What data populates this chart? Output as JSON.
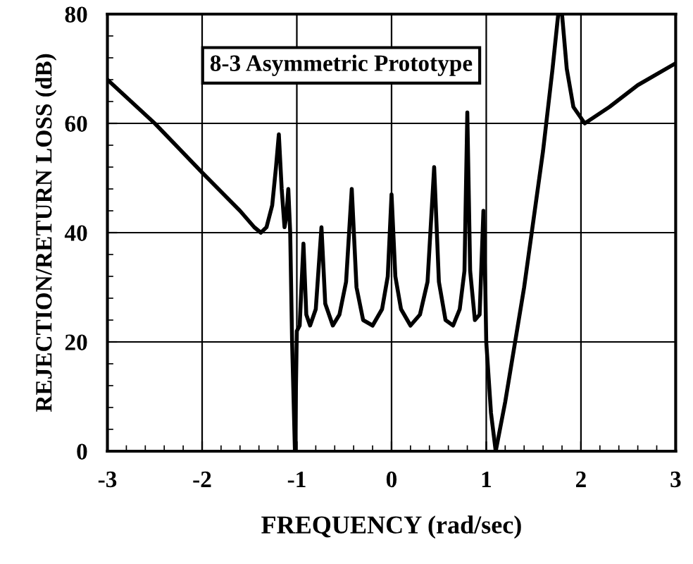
{
  "chart_data": {
    "type": "line",
    "xlabel": "FREQUENCY (rad/sec)",
    "ylabel": "REJECTION/RETURN LOSS (dB)",
    "annotations": [
      "8-3 Asymmetric Prototype"
    ],
    "series": [
      {
        "color": "#000000",
        "x": [
          -3,
          -2.5,
          -2,
          -1.6,
          -1.45,
          -1.38,
          -1.32,
          -1.26,
          -1.22,
          -1.19,
          -1.16,
          -1.13,
          -1.11,
          -1.09,
          -1.07,
          -1.05,
          -1.02
        ],
        "values": [
          68,
          60,
          51,
          44,
          41,
          40,
          41,
          45,
          52,
          58,
          48,
          41,
          43,
          48,
          40,
          20,
          0
        ]
      },
      {
        "color": "#000000",
        "x": [
          -1.02,
          -1.0,
          -0.97,
          -0.93,
          -0.9,
          -0.86,
          -0.8,
          -0.74,
          -0.7,
          -0.62,
          -0.55,
          -0.48,
          -0.42,
          -0.37,
          -0.3,
          -0.2,
          -0.1,
          -0.04,
          0.0,
          0.04,
          0.1,
          0.2,
          0.3,
          0.38,
          0.45,
          0.5,
          0.57,
          0.65,
          0.72,
          0.77,
          0.8,
          0.83,
          0.88,
          0.93,
          0.97,
          0.99,
          1.0,
          1.05,
          1.1
        ],
        "values": [
          0,
          22,
          23,
          38,
          25,
          23,
          26,
          41,
          27,
          23,
          25,
          31,
          48,
          30,
          24,
          23,
          26,
          32,
          47,
          32,
          26,
          23,
          25,
          31,
          52,
          31,
          24,
          23,
          26,
          33,
          62,
          33,
          24,
          25,
          44,
          30,
          20,
          7,
          0
        ]
      },
      {
        "color": "#000000",
        "x": [
          1.1,
          1.2,
          1.4,
          1.6,
          1.7,
          1.76,
          1.8,
          1.85,
          1.92,
          2.04,
          2.3,
          2.6,
          3
        ],
        "values": [
          0,
          9,
          30,
          55,
          70,
          80,
          80,
          70,
          63,
          60,
          63,
          67,
          71
        ]
      }
    ],
    "xlim": [
      -3,
      3
    ],
    "ylim": [
      0,
      80
    ],
    "xticks": [
      -3,
      -2,
      -1,
      0,
      1,
      2,
      3
    ],
    "yticks": [
      0,
      20,
      40,
      60,
      80
    ],
    "grid": true,
    "marker": "none",
    "line_style": "solid"
  }
}
